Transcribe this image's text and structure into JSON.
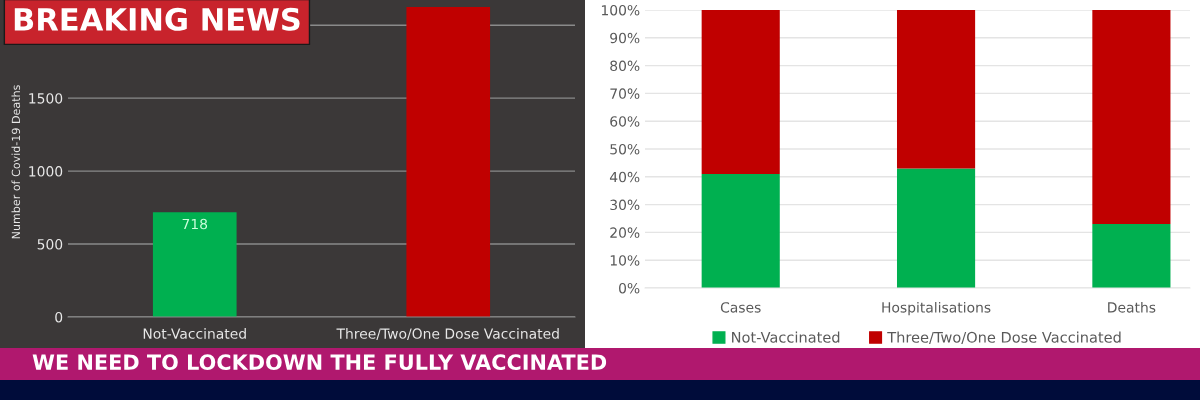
{
  "chart_data": [
    {
      "type": "bar",
      "categories": [
        "Not-Vaccinated",
        "Three/Two/One Dose Vaccinated"
      ],
      "values": [
        718,
        2125
      ],
      "colors": [
        "#00b050",
        "#c00000"
      ],
      "value_labels": [
        "718",
        null
      ],
      "ylabel": "Number of Covid-19 Deaths",
      "ylim": [
        0,
        2125
      ],
      "yticks": [
        0,
        500,
        1000,
        1500,
        {
          "value": 2000,
          "label": null
        }
      ],
      "grid": "y",
      "annotations": [
        "BREAKING NEWS",
        "WE NEED TO LOCKDOWN THE FULLY VACCINATED"
      ]
    },
    {
      "type": "bar",
      "stacked": true,
      "categories": [
        "Cases",
        "Hospitalisations",
        "Deaths"
      ],
      "series": [
        {
          "name": "Not-Vaccinated",
          "color": "#00b050",
          "values": [
            41,
            43,
            23
          ]
        },
        {
          "name": "Three/Two/One Dose Vaccinated",
          "color": "#c00000",
          "values": [
            59,
            57,
            77
          ]
        }
      ],
      "ylim": [
        0,
        100
      ],
      "yticks": [
        {
          "value": 0,
          "label": "0%"
        },
        {
          "value": 10,
          "label": "10%"
        },
        {
          "value": 20,
          "label": "20%"
        },
        {
          "value": 30,
          "label": "30%"
        },
        {
          "value": 40,
          "label": "40%"
        },
        {
          "value": 50,
          "label": "50%"
        },
        {
          "value": 60,
          "label": "60%"
        },
        {
          "value": 70,
          "label": "70%"
        },
        {
          "value": 80,
          "label": "80%"
        },
        {
          "value": 90,
          "label": "90%"
        },
        {
          "value": 100,
          "label": "100%"
        }
      ],
      "grid": "y",
      "legend": "bottom"
    }
  ]
}
